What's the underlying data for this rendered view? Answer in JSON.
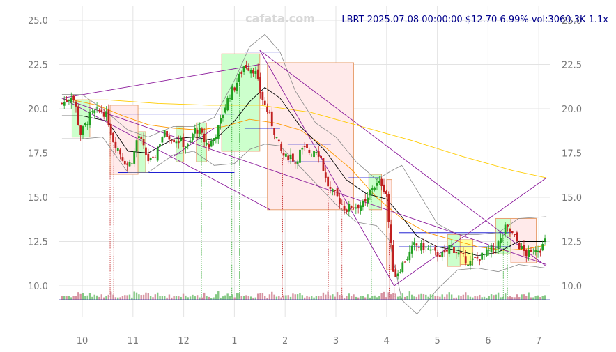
{
  "watermark": "cafata.com",
  "info": "LBRT 2025.07.08 00:00:00 $12.70 6.99% vol:3060.3K 1.1x",
  "chart_data": {
    "type": "candlestick",
    "ticker": "LBRT",
    "last": {
      "date": "2025.07.08",
      "price": 12.7,
      "change_pct": 6.99,
      "volume": "3060.3K",
      "vol_ratio": "1.1x"
    },
    "x_ticks": [
      {
        "label": "10",
        "m": 0
      },
      {
        "label": "11",
        "m": 1
      },
      {
        "label": "12",
        "m": 2
      },
      {
        "label": "1",
        "m": 3
      },
      {
        "label": "2",
        "m": 4
      },
      {
        "label": "3",
        "m": 5
      },
      {
        "label": "4",
        "m": 6
      },
      {
        "label": "5",
        "m": 7
      },
      {
        "label": "6",
        "m": 8
      },
      {
        "label": "7",
        "m": 9
      }
    ],
    "y_ticks": [
      10.0,
      12.5,
      15.0,
      17.5,
      20.0,
      22.5,
      25.0
    ],
    "y_tick_labels": [
      "10.0",
      "12.5",
      "15.0",
      "17.5",
      "20.0",
      "22.5",
      "25.0"
    ],
    "ylim": [
      7.2,
      25.9
    ],
    "xlim": [
      -0.45,
      9.35
    ],
    "grid": true,
    "close_path": [
      [
        -0.4,
        20.3
      ],
      [
        -0.3,
        20.5
      ],
      [
        -0.2,
        20.8
      ],
      [
        -0.1,
        19.8
      ],
      [
        -0.05,
        18.5
      ],
      [
        0.05,
        19.0
      ],
      [
        0.15,
        19.6
      ],
      [
        0.25,
        19.8
      ],
      [
        0.4,
        19.9
      ],
      [
        0.5,
        19.5
      ],
      [
        0.6,
        18.3
      ],
      [
        0.7,
        17.8
      ],
      [
        0.8,
        17.2
      ],
      [
        0.9,
        16.8
      ],
      [
        1.0,
        17.2
      ],
      [
        1.1,
        18.6
      ],
      [
        1.2,
        17.8
      ],
      [
        1.3,
        17.1
      ],
      [
        1.4,
        17.0
      ],
      [
        1.5,
        17.9
      ],
      [
        1.6,
        18.6
      ],
      [
        1.7,
        18.5
      ],
      [
        1.8,
        18.3
      ],
      [
        1.9,
        18.2
      ],
      [
        2.0,
        18.0
      ],
      [
        2.1,
        17.8
      ],
      [
        2.2,
        18.8
      ],
      [
        2.3,
        18.8
      ],
      [
        2.4,
        18.2
      ],
      [
        2.5,
        17.9
      ],
      [
        2.6,
        18.4
      ],
      [
        2.7,
        19.0
      ],
      [
        2.8,
        20.0
      ],
      [
        2.9,
        20.8
      ],
      [
        3.0,
        21.2
      ],
      [
        3.1,
        21.8
      ],
      [
        3.2,
        22.5
      ],
      [
        3.3,
        22.3
      ],
      [
        3.4,
        22.2
      ],
      [
        3.5,
        21.0
      ],
      [
        3.6,
        20.2
      ],
      [
        3.7,
        19.5
      ],
      [
        3.8,
        18.6
      ],
      [
        3.9,
        17.7
      ],
      [
        4.0,
        17.2
      ],
      [
        4.1,
        17.4
      ],
      [
        4.2,
        17.0
      ],
      [
        4.3,
        17.6
      ],
      [
        4.4,
        17.7
      ],
      [
        4.5,
        17.5
      ],
      [
        4.6,
        17.8
      ],
      [
        4.7,
        17.3
      ],
      [
        4.8,
        16.0
      ],
      [
        4.9,
        15.3
      ],
      [
        5.0,
        15.1
      ],
      [
        5.1,
        14.7
      ],
      [
        5.2,
        14.3
      ],
      [
        5.3,
        14.5
      ],
      [
        5.4,
        14.5
      ],
      [
        5.5,
        14.6
      ],
      [
        5.6,
        14.6
      ],
      [
        5.7,
        15.6
      ],
      [
        5.8,
        15.7
      ],
      [
        5.9,
        15.8
      ],
      [
        6.0,
        15.2
      ],
      [
        6.05,
        13.2
      ],
      [
        6.15,
        10.5
      ],
      [
        6.25,
        10.9
      ],
      [
        6.35,
        11.4
      ],
      [
        6.45,
        11.8
      ],
      [
        6.55,
        12.3
      ],
      [
        6.65,
        12.2
      ],
      [
        6.75,
        12.2
      ],
      [
        6.85,
        12.0
      ],
      [
        6.95,
        11.8
      ],
      [
        7.05,
        11.8
      ],
      [
        7.15,
        11.7
      ],
      [
        7.25,
        12.3
      ],
      [
        7.35,
        12.0
      ],
      [
        7.45,
        11.7
      ],
      [
        7.55,
        11.5
      ],
      [
        7.65,
        11.3
      ],
      [
        7.75,
        11.5
      ],
      [
        7.85,
        11.6
      ],
      [
        7.95,
        11.8
      ],
      [
        8.05,
        12.0
      ],
      [
        8.15,
        12.2
      ],
      [
        8.25,
        12.6
      ],
      [
        8.35,
        13.3
      ],
      [
        8.45,
        13.0
      ],
      [
        8.55,
        12.6
      ],
      [
        8.65,
        12.1
      ],
      [
        8.75,
        11.8
      ],
      [
        8.85,
        11.8
      ],
      [
        8.95,
        12.2
      ],
      [
        9.05,
        12.1
      ],
      [
        9.15,
        12.7
      ]
    ],
    "ma_short": [
      [
        -0.4,
        19.6
      ],
      [
        0.0,
        19.6
      ],
      [
        0.5,
        19.3
      ],
      [
        0.9,
        17.6
      ],
      [
        1.3,
        17.5
      ],
      [
        1.8,
        18.3
      ],
      [
        2.2,
        18.4
      ],
      [
        2.6,
        18.2
      ],
      [
        3.0,
        19.3
      ],
      [
        3.3,
        20.4
      ],
      [
        3.6,
        21.2
      ],
      [
        3.9,
        20.6
      ],
      [
        4.3,
        19.0
      ],
      [
        4.8,
        17.6
      ],
      [
        5.2,
        16.0
      ],
      [
        5.6,
        15.2
      ],
      [
        6.0,
        14.9
      ],
      [
        6.3,
        13.9
      ],
      [
        6.6,
        12.8
      ],
      [
        7.0,
        12.2
      ],
      [
        7.4,
        12.0
      ],
      [
        7.8,
        11.7
      ],
      [
        8.2,
        11.9
      ],
      [
        8.6,
        12.5
      ],
      [
        9.15,
        12.5
      ]
    ],
    "ma_mid": [
      [
        -0.2,
        20.5
      ],
      [
        0.3,
        20.2
      ],
      [
        0.8,
        19.6
      ],
      [
        1.3,
        19.1
      ],
      [
        1.8,
        18.9
      ],
      [
        2.3,
        18.8
      ],
      [
        2.8,
        19.0
      ],
      [
        3.3,
        19.4
      ],
      [
        3.8,
        19.2
      ],
      [
        4.3,
        18.8
      ],
      [
        4.8,
        17.8
      ],
      [
        5.3,
        16.6
      ],
      [
        5.8,
        15.0
      ],
      [
        6.3,
        13.8
      ],
      [
        6.8,
        13.0
      ],
      [
        7.3,
        12.6
      ],
      [
        7.8,
        12.2
      ],
      [
        8.3,
        12.0
      ],
      [
        8.8,
        12.1
      ],
      [
        9.15,
        12.3
      ]
    ],
    "ma_long": [
      [
        -0.4,
        20.5
      ],
      [
        0.5,
        20.5
      ],
      [
        1.5,
        20.3
      ],
      [
        2.5,
        20.2
      ],
      [
        3.5,
        20.2
      ],
      [
        4.5,
        19.8
      ],
      [
        5.5,
        19.0
      ],
      [
        6.5,
        18.2
      ],
      [
        7.5,
        17.3
      ],
      [
        8.5,
        16.5
      ],
      [
        9.15,
        16.1
      ]
    ],
    "band_upper": [
      [
        -0.4,
        20.8
      ],
      [
        0.0,
        20.8
      ],
      [
        0.4,
        20.0
      ],
      [
        0.9,
        18.8
      ],
      [
        1.3,
        18.4
      ],
      [
        1.8,
        19.0
      ],
      [
        2.2,
        19.0
      ],
      [
        2.6,
        19.5
      ],
      [
        3.0,
        21.6
      ],
      [
        3.3,
        23.5
      ],
      [
        3.6,
        24.2
      ],
      [
        3.9,
        23.2
      ],
      [
        4.2,
        21.0
      ],
      [
        4.6,
        19.2
      ],
      [
        5.0,
        18.4
      ],
      [
        5.4,
        17.0
      ],
      [
        5.8,
        16.0
      ],
      [
        6.1,
        16.5
      ],
      [
        6.3,
        16.8
      ],
      [
        6.6,
        15.4
      ],
      [
        7.0,
        13.5
      ],
      [
        7.4,
        12.9
      ],
      [
        7.8,
        12.9
      ],
      [
        8.2,
        13.0
      ],
      [
        8.6,
        13.8
      ],
      [
        9.15,
        13.9
      ]
    ],
    "band_lower": [
      [
        -0.4,
        18.3
      ],
      [
        0.0,
        18.3
      ],
      [
        0.4,
        18.4
      ],
      [
        0.9,
        16.4
      ],
      [
        1.3,
        16.4
      ],
      [
        1.8,
        17.4
      ],
      [
        2.2,
        17.6
      ],
      [
        2.6,
        16.8
      ],
      [
        3.0,
        16.9
      ],
      [
        3.3,
        17.7
      ],
      [
        3.6,
        18.0
      ],
      [
        3.9,
        17.9
      ],
      [
        4.2,
        17.0
      ],
      [
        4.6,
        15.8
      ],
      [
        5.0,
        14.6
      ],
      [
        5.4,
        13.6
      ],
      [
        5.8,
        13.4
      ],
      [
        6.05,
        12.6
      ],
      [
        6.3,
        9.2
      ],
      [
        6.6,
        8.4
      ],
      [
        7.0,
        9.8
      ],
      [
        7.4,
        10.9
      ],
      [
        7.8,
        11.0
      ],
      [
        8.2,
        10.8
      ],
      [
        8.6,
        11.2
      ],
      [
        9.15,
        11.0
      ]
    ],
    "zones": [
      {
        "m0": -0.2,
        "m1": 0.15,
        "y0": 18.4,
        "y1": 20.5,
        "kind": "up"
      },
      {
        "m0": 0.55,
        "m1": 1.1,
        "y0": 16.3,
        "y1": 20.2,
        "kind": "down"
      },
      {
        "m0": 1.1,
        "m1": 1.25,
        "y0": 16.4,
        "y1": 18.7,
        "kind": "up"
      },
      {
        "m0": 1.85,
        "m1": 2.0,
        "y0": 17.0,
        "y1": 19.0,
        "kind": "up"
      },
      {
        "m0": 2.25,
        "m1": 2.45,
        "y0": 17.0,
        "y1": 19.2,
        "kind": "up"
      },
      {
        "m0": 2.75,
        "m1": 3.5,
        "y0": 17.6,
        "y1": 23.1,
        "kind": "up"
      },
      {
        "m0": 3.65,
        "m1": 5.35,
        "y0": 14.3,
        "y1": 22.6,
        "kind": "down"
      },
      {
        "m0": 5.65,
        "m1": 5.9,
        "y0": 14.3,
        "y1": 16.3,
        "kind": "up"
      },
      {
        "m0": 6.0,
        "m1": 6.1,
        "y0": 10.9,
        "y1": 16.0,
        "kind": "down"
      },
      {
        "m0": 7.2,
        "m1": 7.45,
        "y0": 11.1,
        "y1": 12.9,
        "kind": "up"
      },
      {
        "m0": 7.45,
        "m1": 7.7,
        "y0": 11.2,
        "y1": 12.6,
        "kind": "flat"
      },
      {
        "m0": 8.15,
        "m1": 8.45,
        "y0": 11.8,
        "y1": 13.8,
        "kind": "up"
      },
      {
        "m0": 8.45,
        "m1": 8.95,
        "y0": 11.3,
        "y1": 13.8,
        "kind": "down"
      }
    ],
    "levels": [
      {
        "m0": 0.7,
        "m1": 3.0,
        "y": 19.7
      },
      {
        "m0": 0.7,
        "m1": 3.0,
        "y": 16.4
      },
      {
        "m0": 3.2,
        "m1": 3.9,
        "y": 23.2
      },
      {
        "m0": 3.2,
        "m1": 3.9,
        "y": 18.9
      },
      {
        "m0": 4.05,
        "m1": 4.9,
        "y": 18.0
      },
      {
        "m0": 4.05,
        "m1": 4.9,
        "y": 17.0
      },
      {
        "m0": 5.25,
        "m1": 5.85,
        "y": 16.1
      },
      {
        "m0": 5.25,
        "m1": 5.85,
        "y": 14.0
      },
      {
        "m0": 6.25,
        "m1": 8.45,
        "y": 13.0
      },
      {
        "m0": 6.25,
        "m1": 8.45,
        "y": 12.2
      },
      {
        "m0": 8.45,
        "m1": 9.15,
        "y": 13.6
      },
      {
        "m0": 8.45,
        "m1": 9.15,
        "y": 11.4
      }
    ],
    "trendlines": [
      [
        [
          -0.4,
          20.6
        ],
        [
          3.5,
          22.5
        ]
      ],
      [
        [
          -0.4,
          20.6
        ],
        [
          9.15,
          11.2
        ]
      ],
      [
        [
          -0.4,
          20.6
        ],
        [
          3.7,
          14.3
        ]
      ],
      [
        [
          3.5,
          23.3
        ],
        [
          9.15,
          11.1
        ]
      ],
      [
        [
          3.5,
          23.3
        ],
        [
          6.15,
          10.0
        ]
      ],
      [
        [
          6.15,
          10.0
        ],
        [
          9.15,
          16.1
        ]
      ],
      [
        [
          1.8,
          17.3
        ],
        [
          2.6,
          18.9
        ]
      ]
    ],
    "signals": [
      {
        "m": 0.55,
        "kind": "down"
      },
      {
        "m": 0.62,
        "kind": "down"
      },
      {
        "m": 1.75,
        "kind": "up"
      },
      {
        "m": 2.3,
        "kind": "up"
      },
      {
        "m": 2.35,
        "kind": "up"
      },
      {
        "m": 2.95,
        "kind": "up"
      },
      {
        "m": 3.1,
        "kind": "up"
      },
      {
        "m": 3.88,
        "kind": "down"
      },
      {
        "m": 3.95,
        "kind": "down"
      },
      {
        "m": 4.85,
        "kind": "down"
      },
      {
        "m": 5.12,
        "kind": "down"
      },
      {
        "m": 5.2,
        "kind": "down"
      },
      {
        "m": 5.7,
        "kind": "up"
      },
      {
        "m": 6.05,
        "kind": "down"
      },
      {
        "m": 6.15,
        "kind": "down"
      },
      {
        "m": 8.3,
        "kind": "up"
      },
      {
        "m": 8.38,
        "kind": "up"
      }
    ],
    "colors": {
      "up": "#22a022",
      "down": "#c02020",
      "ma_short": "#000000",
      "ma_mid": "#ff9900",
      "ma_long": "#ffcc00",
      "band": "#888888",
      "trend": "#8b1a9b",
      "level": "#0000cc",
      "zone_up_fill": "#ccffcc",
      "zone_down_fill": "#ffeaea",
      "zone_flat_fill": "#ffff99",
      "zone_stroke": "#e8a070",
      "grid": "#e3e3e3",
      "info": "#00008b"
    }
  }
}
